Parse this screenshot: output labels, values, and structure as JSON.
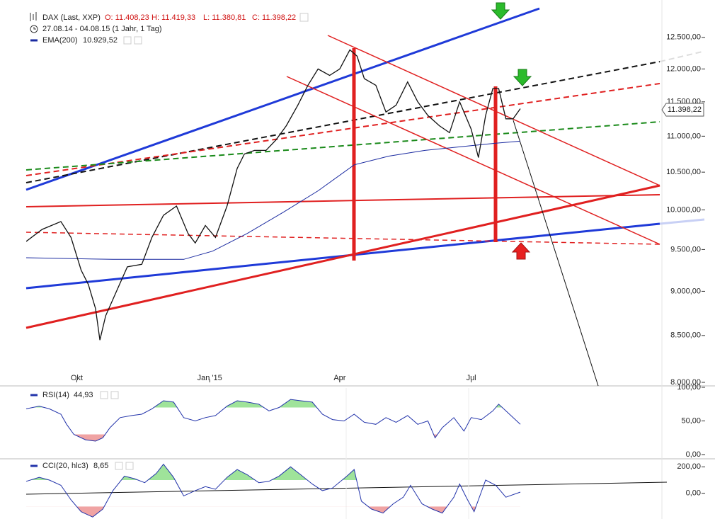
{
  "chart_data": [
    {
      "type": "line",
      "log": true,
      "title": "DAX (Last, XXP)",
      "quote": [
        "O: 11.408,23",
        "H: 11.419,33",
        "L: 11.380,81",
        "C: 11.398,22"
      ],
      "period": "27.08.14 - 04.08.15 (1 Jahr, 1 Tag)",
      "last_label": "11.398,22",
      "color": "#111111",
      "x": [
        0,
        11,
        24,
        31,
        38,
        43,
        48,
        51,
        55,
        63,
        70,
        80,
        87,
        95,
        104,
        112,
        117,
        124,
        131,
        139,
        146,
        151,
        158,
        166,
        173,
        180,
        188,
        195,
        202,
        210,
        217,
        224,
        229,
        234,
        242,
        249,
        256,
        264,
        271,
        278,
        286,
        293,
        300,
        308,
        313,
        318,
        323,
        327,
        332,
        337,
        342
      ],
      "values": [
        9600,
        9750,
        9850,
        9650,
        9250,
        9080,
        8800,
        8450,
        8720,
        9020,
        9290,
        9320,
        9650,
        9930,
        10050,
        9700,
        9580,
        9800,
        9650,
        10050,
        10550,
        10750,
        10800,
        10800,
        10950,
        11150,
        11450,
        11750,
        12000,
        11900,
        12000,
        12300,
        12200,
        11850,
        11750,
        11350,
        11450,
        11800,
        11500,
        11300,
        11150,
        11050,
        11500,
        11100,
        10700,
        11300,
        11700,
        11700,
        11250,
        11250,
        11398.22
      ],
      "series": [
        {
          "name": "EMA(200)",
          "value_label": "10.929,52",
          "color": "#1a2aa0",
          "x": [
            0,
            60,
            109,
            129,
            153,
            178,
            202,
            227,
            251,
            276,
            300,
            325,
            342
          ],
          "values": [
            9400,
            9380,
            9380,
            9480,
            9700,
            9970,
            10250,
            10600,
            10720,
            10800,
            10850,
            10900,
            10929.52
          ]
        }
      ],
      "xlim": [
        0,
        440
      ],
      "xticks": [
        {
          "value": 35,
          "label": "Okt"
        },
        {
          "value": 127,
          "label": "Jan '15"
        },
        {
          "value": 217,
          "label": "Apr"
        },
        {
          "value": 308,
          "label": "Jul"
        }
      ],
      "ylim": [
        8000,
        13000
      ],
      "yticks": [
        {
          "value": 8000,
          "label": "8.000,00"
        },
        {
          "value": 8500,
          "label": "8.500,00"
        },
        {
          "value": 9000,
          "label": "9.000,00"
        },
        {
          "value": 9500,
          "label": "9.500,00"
        },
        {
          "value": 10000,
          "label": "10.000,00"
        },
        {
          "value": 10500,
          "label": "10.500,00"
        },
        {
          "value": 11000,
          "label": "11.000,00"
        },
        {
          "value": 11500,
          "label": "11.500,00"
        },
        {
          "value": 12000,
          "label": "12.000,00"
        },
        {
          "value": 12500,
          "label": "12.500,00"
        }
      ]
    },
    {
      "type": "line",
      "series": [
        {
          "name": "RSI(14)",
          "value_label": "44,93",
          "color": "#2233aa",
          "values": [
            68,
            72,
            68,
            60,
            45,
            30,
            22,
            20,
            25,
            40,
            55,
            58,
            60,
            68,
            80,
            78,
            55,
            50,
            55,
            58,
            72,
            80,
            78,
            75,
            65,
            70,
            82,
            80,
            78,
            60,
            52,
            50,
            60,
            48,
            45,
            55,
            48,
            58,
            45,
            50,
            25,
            40,
            55,
            35,
            55,
            52,
            65,
            75,
            65,
            55,
            44.93
          ]
        }
      ],
      "x": [
        0,
        9,
        16,
        24,
        28,
        33,
        41,
        48,
        53,
        58,
        65,
        73,
        80,
        87,
        95,
        102,
        109,
        117,
        124,
        131,
        139,
        146,
        153,
        161,
        168,
        175,
        183,
        190,
        198,
        205,
        212,
        220,
        227,
        234,
        242,
        249,
        256,
        264,
        271,
        278,
        283,
        288,
        296,
        303,
        308,
        315,
        323,
        327,
        332,
        337,
        342
      ],
      "overbought": 70,
      "oversold": 30,
      "xlim": [
        0,
        440
      ],
      "ylim": [
        0,
        100
      ],
      "yticks": [
        {
          "value": 0,
          "label": "0,00"
        },
        {
          "value": 50,
          "label": "50,00"
        },
        {
          "value": 100,
          "label": "100,00"
        }
      ]
    },
    {
      "type": "line",
      "series": [
        {
          "name": "CCI(20, hlc3)",
          "value_label": "8,65",
          "color": "#2233aa",
          "values": [
            90,
            120,
            100,
            60,
            -50,
            -140,
            -180,
            -120,
            20,
            130,
            110,
            80,
            150,
            220,
            120,
            -20,
            20,
            50,
            30,
            120,
            180,
            140,
            80,
            90,
            130,
            200,
            140,
            70,
            20,
            40,
            130,
            180,
            -60,
            -120,
            -150,
            -80,
            -30,
            60,
            -80,
            -120,
            -150,
            -30,
            70,
            -40,
            -140,
            100,
            60,
            -30,
            8.65
          ]
        }
      ],
      "x": [
        0,
        9,
        16,
        24,
        31,
        38,
        46,
        53,
        60,
        68,
        75,
        82,
        90,
        95,
        102,
        109,
        117,
        124,
        131,
        139,
        146,
        153,
        161,
        168,
        175,
        183,
        190,
        198,
        205,
        212,
        222,
        227,
        232,
        239,
        247,
        254,
        261,
        266,
        274,
        281,
        288,
        296,
        300,
        305,
        310,
        318,
        325,
        332,
        342
      ],
      "overbought": 100,
      "oversold": -100,
      "xlim": [
        0,
        440
      ],
      "ylim": [
        -195,
        250
      ],
      "yticks": [
        {
          "value": 0,
          "label": "0,00"
        },
        {
          "value": 200,
          "label": "200,00"
        }
      ]
    }
  ]
}
